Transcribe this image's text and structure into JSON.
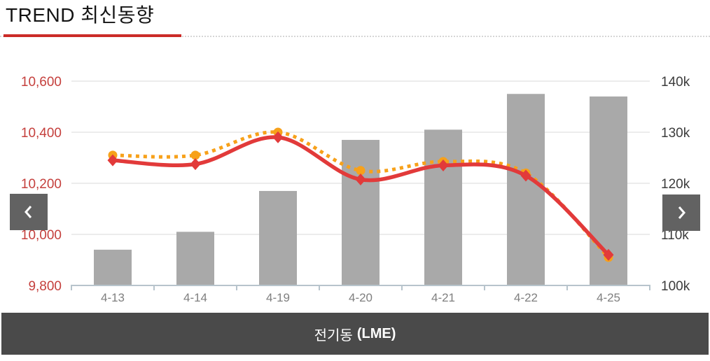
{
  "header": {
    "title": "TREND 최신동향"
  },
  "carousel": {
    "prev_icon": "chevron-left-icon",
    "next_icon": "chevron-right-icon",
    "caption": {
      "name": "전기동",
      "unit": "(LME)"
    }
  },
  "chart_data": {
    "type": "combo",
    "title": "전기동 (LME)",
    "categories": [
      "4-13",
      "4-14",
      "4-19",
      "4-20",
      "4-21",
      "4-22",
      "4-25"
    ],
    "left_axis": {
      "min": 9800,
      "max": 10600,
      "tick_values": [
        10600,
        10400,
        10200,
        10000,
        9800
      ],
      "ticks": [
        "10,600",
        "10,400",
        "10,200",
        "10,000",
        "9,800"
      ]
    },
    "right_axis": {
      "min": 100000,
      "max": 140000,
      "tick_values": [
        140000,
        130000,
        120000,
        110000,
        100000
      ],
      "ticks": [
        "140k",
        "130k",
        "120k",
        "110k",
        "100k"
      ]
    },
    "series": [
      {
        "name": "gray-bars",
        "type": "bar",
        "axis": "right",
        "values": [
          107000,
          110500,
          118500,
          128500,
          130500,
          137500,
          137000
        ]
      },
      {
        "name": "dotted-orange-line",
        "type": "line",
        "style": "dotted",
        "marker": "circle",
        "axis": "left",
        "values": [
          10310,
          10310,
          10400,
          10250,
          10285,
          10240,
          9910
        ]
      },
      {
        "name": "solid-red-line",
        "type": "line",
        "style": "solid",
        "marker": "diamond",
        "axis": "left",
        "values": [
          10290,
          10275,
          10380,
          10215,
          10270,
          10230,
          9920
        ]
      }
    ],
    "grid": true,
    "legend": false,
    "theme": {
      "bar": "#a9a9a9",
      "line_solid": "#e23a3a",
      "line_dotted": "#f7a11a",
      "left_axis_text": "#c5403d",
      "right_axis_text": "#3c3c3c",
      "x_axis_text": "#7f7f7f",
      "axis_line": "#b7c4cc",
      "grid": "#d8d8d8",
      "title_underline": "#cb2b27",
      "caption_bg": "#4a4a4a",
      "nav_bg": "#626262"
    }
  }
}
